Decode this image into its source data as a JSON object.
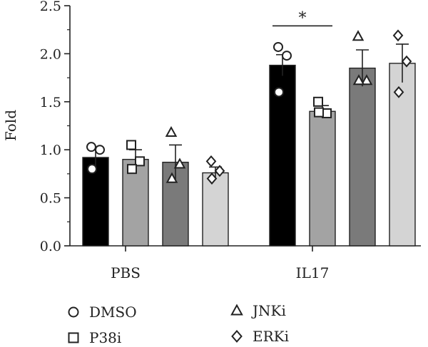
{
  "chart_data": {
    "type": "bar",
    "title": "",
    "xlabel": "",
    "ylabel": "Fold",
    "ylim": [
      0,
      2.5
    ],
    "yticks": [
      "0.0",
      "0.5",
      "1.0",
      "1.5",
      "2.0",
      "2.5"
    ],
    "categories": [
      "PBS",
      "IL17"
    ],
    "grid": false,
    "legend_position": "bottom",
    "series": [
      {
        "name": "DMSO",
        "marker": "circle",
        "color": "#000000",
        "values": [
          0.92,
          1.88
        ],
        "errors": [
          0.1,
          0.11
        ],
        "points": [
          [
            1.03,
            1.0,
            0.8
          ],
          [
            2.07,
            1.98,
            1.6
          ]
        ]
      },
      {
        "name": "P38i",
        "marker": "square",
        "color": "#a3a3a3",
        "values": [
          0.9,
          1.4
        ],
        "errors": [
          0.1,
          0.06
        ],
        "points": [
          [
            1.05,
            0.88,
            0.8
          ],
          [
            1.5,
            1.38,
            1.39
          ]
        ]
      },
      {
        "name": "JNKi",
        "marker": "triangle",
        "color": "#7a7a7a",
        "values": [
          0.87,
          1.85
        ],
        "errors": [
          0.18,
          0.19
        ],
        "points": [
          [
            1.18,
            0.85,
            0.7
          ],
          [
            2.18,
            1.72,
            1.72
          ]
        ]
      },
      {
        "name": "ERKi",
        "marker": "diamond",
        "color": "#d4d4d4",
        "values": [
          0.76,
          1.9
        ],
        "errors": [
          0.06,
          0.2
        ],
        "points": [
          [
            0.88,
            0.78,
            0.7
          ],
          [
            2.19,
            1.92,
            1.6
          ]
        ]
      }
    ],
    "annotations": [
      {
        "text": "*",
        "category": "IL17",
        "from_series": "DMSO",
        "to_series": "P38i",
        "y": 2.29
      }
    ]
  }
}
